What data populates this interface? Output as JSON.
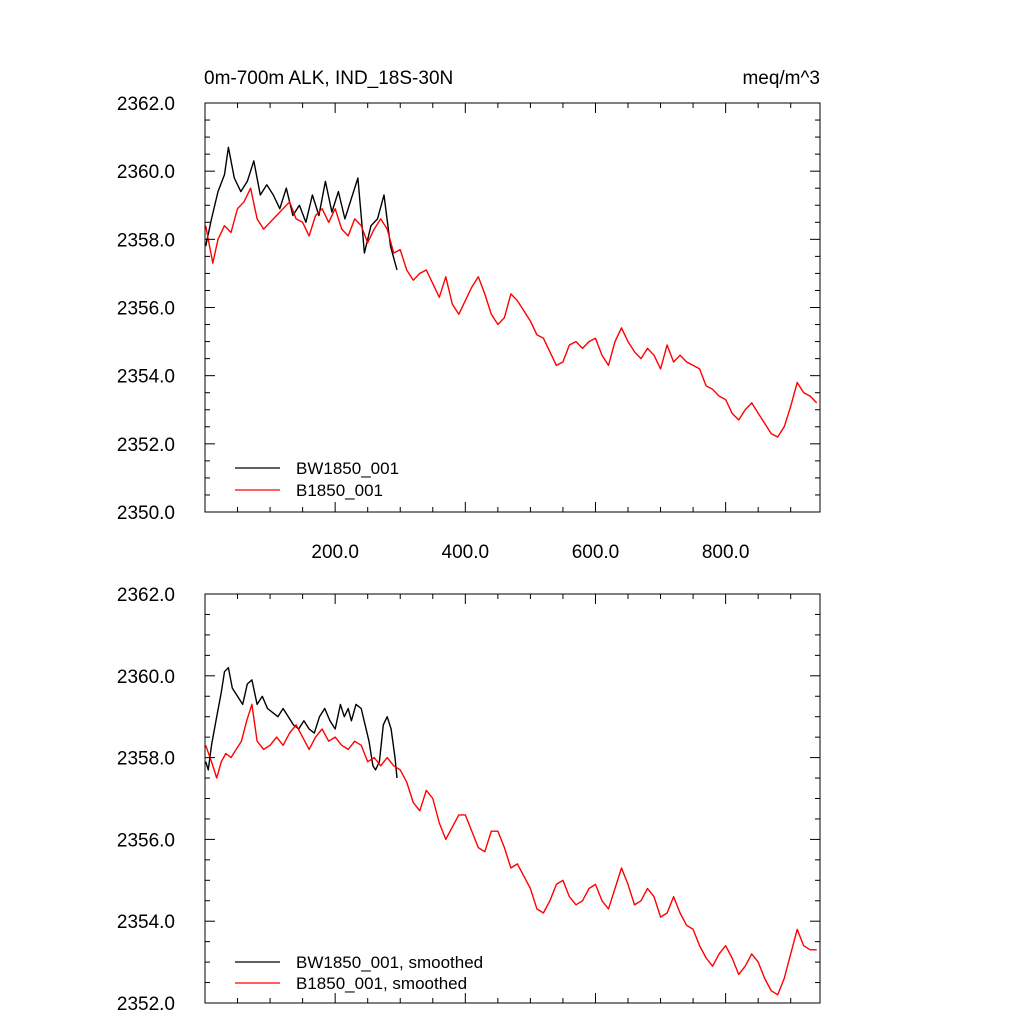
{
  "chart_data": [
    {
      "type": "line",
      "title_left": "0m-700m ALK, IND_18S-30N",
      "title_right": "meq/m^3",
      "xlim": [
        0,
        945
      ],
      "ylim": [
        2350,
        2362
      ],
      "x_ticks": [
        200,
        400,
        600,
        800
      ],
      "x_tick_labels": [
        "200.0",
        "400.0",
        "600.0",
        "800.0"
      ],
      "y_ticks": [
        2350,
        2352,
        2354,
        2356,
        2358,
        2360,
        2362
      ],
      "y_tick_labels": [
        "2350.0",
        "2352.0",
        "2354.0",
        "2356.0",
        "2358.0",
        "2360.0",
        "2362.0"
      ],
      "grid": false,
      "legend_position": "bottom-left",
      "series": [
        {
          "name": "BW1850_001",
          "color": "#000000",
          "x": [
            1,
            10,
            20,
            30,
            36,
            45,
            55,
            65,
            75,
            85,
            95,
            105,
            115,
            125,
            135,
            145,
            155,
            165,
            175,
            185,
            195,
            205,
            215,
            225,
            235,
            245,
            255,
            265,
            275,
            285,
            295
          ],
          "y": [
            2357.8,
            2358.6,
            2359.4,
            2359.9,
            2360.7,
            2359.8,
            2359.4,
            2359.7,
            2360.3,
            2359.3,
            2359.6,
            2359.3,
            2358.9,
            2359.5,
            2358.7,
            2359.0,
            2358.5,
            2359.3,
            2358.7,
            2359.7,
            2358.8,
            2359.4,
            2358.6,
            2359.2,
            2359.8,
            2357.6,
            2358.4,
            2358.6,
            2359.3,
            2357.8,
            2357.1
          ]
        },
        {
          "name": "B1850_001",
          "color": "#ff0000",
          "x": [
            1,
            12,
            20,
            30,
            40,
            50,
            60,
            70,
            80,
            90,
            100,
            110,
            120,
            130,
            140,
            150,
            160,
            170,
            180,
            190,
            200,
            210,
            220,
            230,
            240,
            250,
            260,
            270,
            280,
            290,
            300,
            310,
            320,
            330,
            340,
            350,
            360,
            370,
            380,
            390,
            400,
            410,
            420,
            430,
            440,
            450,
            460,
            470,
            480,
            490,
            500,
            510,
            520,
            530,
            540,
            550,
            560,
            570,
            580,
            590,
            600,
            610,
            620,
            630,
            640,
            650,
            660,
            670,
            680,
            690,
            700,
            710,
            720,
            730,
            740,
            750,
            760,
            770,
            780,
            790,
            800,
            810,
            820,
            830,
            840,
            850,
            860,
            870,
            880,
            890,
            900,
            910,
            920,
            930,
            940
          ],
          "y": [
            2358.4,
            2357.3,
            2358.0,
            2358.4,
            2358.2,
            2358.9,
            2359.1,
            2359.5,
            2358.6,
            2358.3,
            2358.5,
            2358.7,
            2358.9,
            2359.1,
            2358.6,
            2358.5,
            2358.1,
            2358.7,
            2358.9,
            2358.5,
            2358.9,
            2358.3,
            2358.1,
            2358.6,
            2358.4,
            2357.9,
            2358.3,
            2358.6,
            2358.3,
            2357.6,
            2357.7,
            2357.1,
            2356.8,
            2357.0,
            2357.1,
            2356.7,
            2356.3,
            2356.9,
            2356.1,
            2355.8,
            2356.2,
            2356.6,
            2356.9,
            2356.4,
            2355.8,
            2355.5,
            2355.7,
            2356.4,
            2356.2,
            2355.9,
            2355.6,
            2355.2,
            2355.1,
            2354.7,
            2354.3,
            2354.4,
            2354.9,
            2355.0,
            2354.8,
            2355.0,
            2355.1,
            2354.6,
            2354.3,
            2355.0,
            2355.4,
            2355.0,
            2354.7,
            2354.5,
            2354.8,
            2354.6,
            2354.2,
            2354.9,
            2354.4,
            2354.6,
            2354.4,
            2354.3,
            2354.2,
            2353.7,
            2353.6,
            2353.4,
            2353.3,
            2352.9,
            2352.7,
            2353.0,
            2353.2,
            2352.9,
            2352.6,
            2352.3,
            2352.2,
            2352.5,
            2353.1,
            2353.8,
            2353.5,
            2353.4,
            2353.2
          ]
        }
      ]
    },
    {
      "type": "line",
      "xlim": [
        0,
        945
      ],
      "ylim": [
        2352,
        2362
      ],
      "x_ticks": [
        200,
        400,
        600,
        800
      ],
      "x_tick_labels": [],
      "y_ticks": [
        2352,
        2354,
        2356,
        2358,
        2360,
        2362
      ],
      "y_tick_labels": [
        "2352.0",
        "2354.0",
        "2356.0",
        "2358.0",
        "2360.0",
        "2362.0"
      ],
      "grid": false,
      "legend_position": "bottom-left",
      "series": [
        {
          "name": "BW1850_001, smoothed",
          "color": "#000000",
          "x": [
            1,
            5,
            10,
            18,
            25,
            30,
            36,
            42,
            50,
            58,
            65,
            72,
            80,
            88,
            96,
            104,
            112,
            120,
            128,
            136,
            144,
            152,
            160,
            168,
            176,
            184,
            192,
            200,
            208,
            214,
            220,
            225,
            232,
            240,
            246,
            252,
            258,
            262,
            268,
            274,
            280,
            286,
            292,
            295
          ],
          "y": [
            2357.9,
            2357.7,
            2358.3,
            2359.0,
            2359.6,
            2360.1,
            2360.2,
            2359.7,
            2359.5,
            2359.3,
            2359.8,
            2359.9,
            2359.3,
            2359.5,
            2359.2,
            2359.1,
            2359.0,
            2359.2,
            2359.0,
            2358.8,
            2358.7,
            2358.9,
            2358.7,
            2358.6,
            2359.0,
            2359.2,
            2358.9,
            2358.7,
            2359.3,
            2359.0,
            2359.2,
            2358.9,
            2359.3,
            2359.2,
            2358.8,
            2358.4,
            2357.8,
            2357.7,
            2357.9,
            2358.8,
            2359.0,
            2358.7,
            2358.0,
            2357.5
          ]
        },
        {
          "name": "B1850_001, smoothed",
          "color": "#ff0000",
          "x": [
            1,
            10,
            18,
            25,
            32,
            40,
            48,
            56,
            64,
            72,
            80,
            90,
            100,
            110,
            120,
            130,
            140,
            150,
            160,
            170,
            180,
            190,
            200,
            210,
            220,
            230,
            240,
            250,
            260,
            270,
            280,
            290,
            300,
            310,
            320,
            330,
            340,
            350,
            360,
            370,
            380,
            390,
            400,
            410,
            420,
            430,
            440,
            450,
            460,
            470,
            480,
            490,
            500,
            510,
            520,
            530,
            540,
            550,
            560,
            570,
            580,
            590,
            600,
            610,
            620,
            630,
            640,
            650,
            660,
            670,
            680,
            690,
            700,
            710,
            720,
            730,
            740,
            750,
            760,
            770,
            780,
            790,
            800,
            810,
            820,
            830,
            840,
            850,
            860,
            870,
            880,
            890,
            900,
            910,
            920,
            930,
            940
          ],
          "y": [
            2358.3,
            2357.9,
            2357.5,
            2357.9,
            2358.1,
            2358.0,
            2358.2,
            2358.4,
            2358.9,
            2359.3,
            2358.4,
            2358.2,
            2358.3,
            2358.5,
            2358.3,
            2358.6,
            2358.8,
            2358.5,
            2358.2,
            2358.5,
            2358.7,
            2358.4,
            2358.5,
            2358.3,
            2358.2,
            2358.4,
            2358.3,
            2357.9,
            2358.0,
            2357.8,
            2358.0,
            2357.8,
            2357.7,
            2357.4,
            2356.9,
            2356.7,
            2357.2,
            2357.0,
            2356.4,
            2356.0,
            2356.3,
            2356.6,
            2356.6,
            2356.2,
            2355.8,
            2355.7,
            2356.2,
            2356.2,
            2355.8,
            2355.3,
            2355.4,
            2355.1,
            2354.8,
            2354.3,
            2354.2,
            2354.5,
            2354.9,
            2355.0,
            2354.6,
            2354.4,
            2354.5,
            2354.8,
            2354.9,
            2354.5,
            2354.3,
            2354.8,
            2355.3,
            2354.9,
            2354.4,
            2354.5,
            2354.8,
            2354.6,
            2354.1,
            2354.2,
            2354.6,
            2354.2,
            2353.9,
            2353.8,
            2353.4,
            2353.1,
            2352.9,
            2353.2,
            2353.4,
            2353.1,
            2352.7,
            2352.9,
            2353.2,
            2353.0,
            2352.6,
            2352.3,
            2352.2,
            2352.6,
            2353.2,
            2353.8,
            2353.4,
            2353.3,
            2353.3
          ]
        }
      ]
    }
  ]
}
